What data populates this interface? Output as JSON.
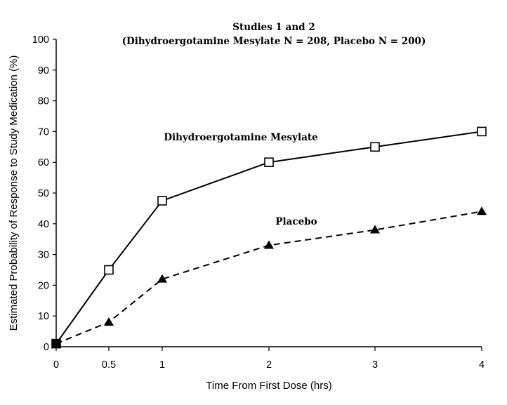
{
  "chart_data": {
    "type": "line",
    "title": "Studies 1 and 2",
    "subtitle": "(Dihydroergotamine Mesylate N = 208, Placebo N = 200)",
    "xlabel": "Time From First Dose (hrs)",
    "ylabel": "Estimated Probability of Response to Study Medication (%)",
    "x_ticks": [
      "0",
      "0.5",
      "1",
      "2",
      "3",
      "4"
    ],
    "y_ticks": [
      "0",
      "10",
      "20",
      "30",
      "40",
      "50",
      "60",
      "70",
      "80",
      "90",
      "100"
    ],
    "ylim": [
      0,
      100
    ],
    "grid": false,
    "legend": "none",
    "series": [
      {
        "name": "Dihydroergotamine Mesylate",
        "style": "solid",
        "marker": "open-square",
        "color": "#000000",
        "x": [
          0,
          0.5,
          1,
          2,
          3,
          4
        ],
        "values": [
          1,
          25,
          47.5,
          60,
          65,
          70
        ]
      },
      {
        "name": "Placebo",
        "style": "dashed",
        "marker": "filled-triangle",
        "color": "#000000",
        "x": [
          0,
          0.5,
          1,
          2,
          3,
          4
        ],
        "values": [
          1,
          8,
          22,
          33,
          38,
          44
        ]
      }
    ]
  }
}
